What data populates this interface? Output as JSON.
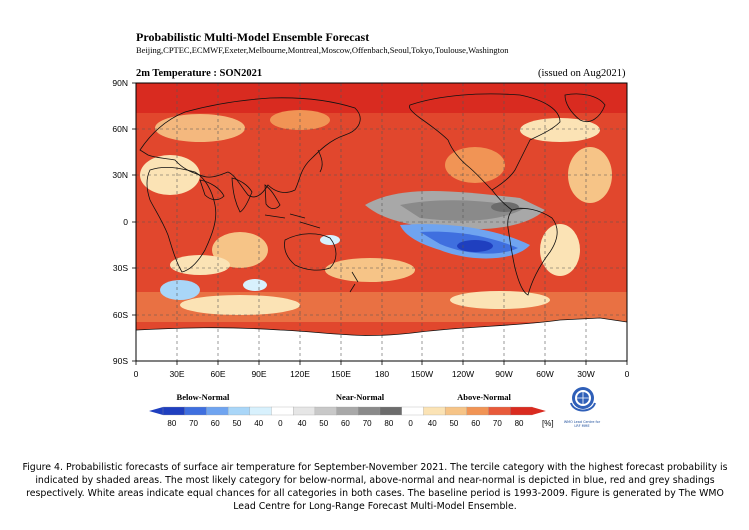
{
  "figure": {
    "title": "Probabilistic Multi-Model Ensemble Forecast",
    "subtitle": "Beijing,CPTEC,ECMWF,Exeter,Melbourne,Montreal,Moscow,Offenbach,Seoul,Tokyo,Toulouse,Washington",
    "map_label": "2m Temperature : SON2021",
    "issued": "(issued on Aug2021)"
  },
  "axes": {
    "y_ticks": [
      "90N",
      "60N",
      "30N",
      "0",
      "30S",
      "60S",
      "90S"
    ],
    "x_ticks": [
      "0",
      "30E",
      "60E",
      "90E",
      "120E",
      "150E",
      "180",
      "150W",
      "120W",
      "90W",
      "60W",
      "30W",
      "0"
    ]
  },
  "legend": {
    "below_label": "Below-Normal",
    "near_label": "Near-Normal",
    "above_label": "Above-Normal",
    "ticks": [
      "80",
      "70",
      "60",
      "50",
      "40",
      "0",
      "40",
      "50",
      "60",
      "70",
      "80",
      "0",
      "40",
      "50",
      "60",
      "70",
      "80"
    ],
    "unit": "[%]",
    "colors": {
      "below": [
        "#1f3fbf",
        "#3f6fdf",
        "#6fa4f0",
        "#a9d6f8",
        "#d8f1fd"
      ],
      "near": [
        "#e6e6e6",
        "#c8c8c8",
        "#a8a8a8",
        "#8a8a8a",
        "#6c6c6c"
      ],
      "above": [
        "#fbe3b5",
        "#f6c487",
        "#f19455",
        "#e85a3a",
        "#d92b20"
      ]
    }
  },
  "logo": {
    "name": "wmo-logo",
    "text_line1": "WMO Lead Centre for",
    "text_line2": "LRF MME"
  },
  "caption": "Figure 4. Probabilistic forecasts of surface air temperature for September-November 2021.  The tercile category with the highest forecast probability is indicated by shaded areas. The most likely category for below-normal, above-normal and near-normal is depicted in blue, red and grey shadings respectively. White areas indicate equal chances for all categories in both cases.  The baseline period is 1993-2009. Figure is generated by The WMO Lead Centre for Long-Range Forecast Multi-Model Ensemble."
}
